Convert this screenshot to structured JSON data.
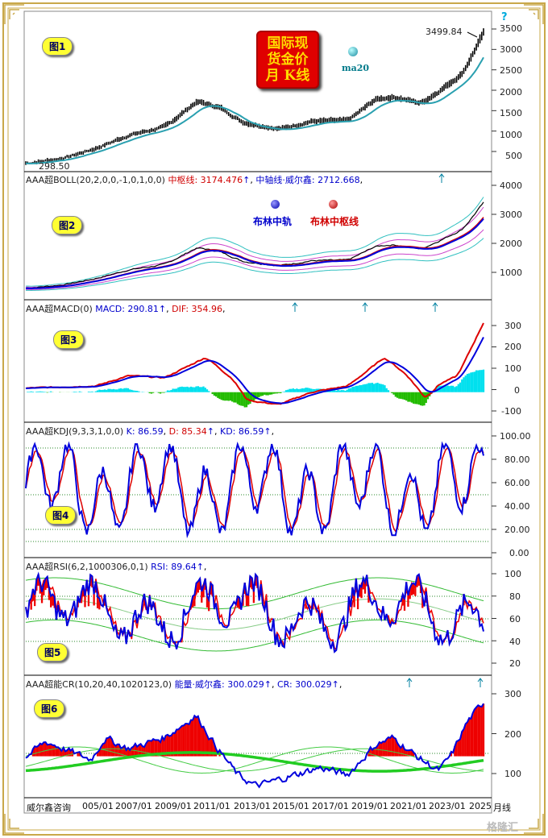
{
  "title_box": [
    "国际现",
    "货金价",
    "月  K线"
  ],
  "ma_label": "ma20",
  "top_right_marker": "?",
  "panels": {
    "p1": {
      "badge": "图1",
      "last_price": "3499.84",
      "low_label": "298.50",
      "yticks": [
        "3500",
        "3000",
        "2500",
        "2000",
        "1500",
        "1000",
        "500"
      ]
    },
    "p2": {
      "badge": "图2",
      "header_name": "AAA超BOLL(20,2,0,0,-1,0,1,0,0)",
      "mid_label": "中枢线: 3174.476",
      "axis_label": "中轴线·威尔鑫: 2712.668",
      "arrow": "↑",
      "comma": ",",
      "legend_upper": "布林中轨",
      "legend_mid": "布林中枢线",
      "yticks": [
        "4000",
        "3000",
        "2000",
        "1000"
      ]
    },
    "p3": {
      "badge": "图3",
      "header_name": "AAA超MACD(0)",
      "macd": "MACD: 290.81",
      "dif": "DIF: 354.96",
      "arrow": "↑",
      "comma": ",",
      "yticks": [
        "300",
        "200",
        "100",
        "0",
        "-100"
      ]
    },
    "p4": {
      "badge": "图4",
      "header_name": "AAA超KDJ(9,3,3,1,0,0)",
      "k": "K: 86.59",
      "d": "D: 85.34",
      "kd": "KD: 86.59",
      "arrow": "↑",
      "comma": ",",
      "yticks": [
        "100.00",
        "80.00",
        "60.00",
        "40.00",
        "20.00",
        "0.00"
      ]
    },
    "p5": {
      "badge": "图5",
      "header_name": "AAA超RSI(6,2,1000306,0,1)",
      "rsi": "RSI: 89.64",
      "arrow": "↑",
      "comma": ",",
      "yticks": [
        "100",
        "80",
        "60",
        "40",
        "20"
      ]
    },
    "p6": {
      "badge": "图6",
      "header_name": "AAA超能CR(10,20,40,1020123,0)",
      "energy": "能量·威尔鑫: 300.029",
      "cr": "CR: 300.029",
      "arrow": "↑",
      "comma": ",",
      "yticks": [
        "300",
        "200",
        "100"
      ]
    }
  },
  "footer": {
    "source": "威尔鑫咨询",
    "period": "月线",
    "watermark": "格隆汇",
    "dates": [
      "005/01",
      "2007/01",
      "2009/01",
      "2011/01",
      "2013/01",
      "2015/01",
      "2017/01",
      "2019/01",
      "2021/01",
      "2023/01",
      "2025"
    ]
  },
  "colors": {
    "candle": "#000000",
    "ma20": "#2aa0b0",
    "boll_mid": "#0000dd",
    "boll_center": "#dd0000",
    "macd": "#0000dd",
    "dif": "#dd0000",
    "hist_pos": "#00e0ee",
    "hist_neg": "#22bb00",
    "kdj_k": "#0000dd",
    "kdj_d": "#dd0000",
    "rsi": "#0000dd",
    "fill_red": "#ee0000",
    "cr": "#0000dd",
    "cr_ma": "#22cc22"
  },
  "chart_data": [
    {
      "type": "line",
      "title": "国际现货金价月K线",
      "series": [
        {
          "name": "ma20",
          "x": [
            "2004/01",
            "2006/01",
            "2008/01",
            "2011/09",
            "2013/06",
            "2015/12",
            "2018/01",
            "2020/08",
            "2022/10",
            "2024/01",
            "2025/04"
          ],
          "values": [
            300,
            420,
            700,
            1830,
            1250,
            1060,
            1320,
            1970,
            1620,
            2050,
            3499.84
          ]
        }
      ],
      "ylim": [
        250,
        3700
      ]
    },
    {
      "type": "line",
      "title": "",
      "series": [
        {
          "name": "中枢线",
          "values": [
            0,
            0,
            0,
            0,
            0,
            0,
            0,
            0,
            0,
            0,
            3174.476
          ]
        },
        {
          "name": "中轴线·威尔鑫",
          "values": [
            0,
            0,
            0,
            0,
            0,
            0,
            0,
            0,
            0,
            0,
            2712.668
          ]
        }
      ],
      "ylim": [
        0,
        4200
      ]
    },
    {
      "type": "line",
      "title": "",
      "series": [
        {
          "name": "MACD",
          "values": [
            290.81
          ]
        },
        {
          "name": "DIF",
          "values": [
            354.96
          ]
        }
      ],
      "ylim": [
        -130,
        370
      ]
    },
    {
      "type": "line",
      "title": "",
      "series": [
        {
          "name": "K",
          "values": [
            86.59
          ]
        },
        {
          "name": "D",
          "values": [
            85.34
          ]
        },
        {
          "name": "KD",
          "values": [
            86.59
          ]
        }
      ],
      "ylim": [
        0,
        100
      ]
    },
    {
      "type": "line",
      "title": "",
      "series": [
        {
          "name": "RSI",
          "values": [
            89.64
          ]
        }
      ],
      "ylim": [
        10,
        100
      ]
    },
    {
      "type": "line",
      "title": "",
      "series": [
        {
          "name": "能量·威尔鑫",
          "values": [
            300.029
          ]
        },
        {
          "name": "CR",
          "values": [
            300.029
          ]
        }
      ],
      "ylim": [
        50,
        330
      ]
    }
  ]
}
